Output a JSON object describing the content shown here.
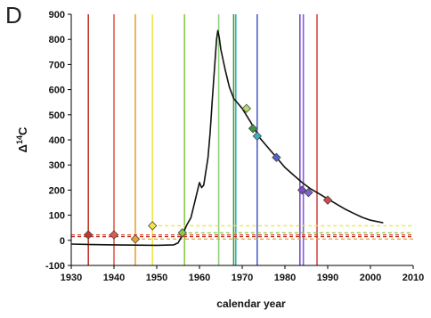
{
  "panel_label": "D",
  "chart_data": {
    "type": "line",
    "title": "",
    "xlabel": "calendar year",
    "ylabel_base": "Δ",
    "ylabel_sup": "14",
    "ylabel_tail": "C",
    "xlim": [
      1930,
      2010
    ],
    "ylim": [
      -100,
      900
    ],
    "xticks": [
      1930,
      1940,
      1950,
      1960,
      1970,
      1980,
      1990,
      2000,
      2010
    ],
    "yticks": [
      -100,
      0,
      100,
      200,
      300,
      400,
      500,
      600,
      700,
      800,
      900
    ],
    "grid": false,
    "legend": "none",
    "curve": {
      "x": [
        1930,
        1935,
        1940,
        1945,
        1950,
        1954,
        1955,
        1956,
        1957,
        1958,
        1959,
        1960,
        1960.5,
        1961,
        1962,
        1962.5,
        1963,
        1963.5,
        1964,
        1964.3,
        1964.6,
        1965,
        1966,
        1967,
        1968,
        1969,
        1970,
        1972,
        1974,
        1976,
        1978,
        1980,
        1982,
        1984,
        1986,
        1988,
        1990,
        1992,
        1994,
        1996,
        1998,
        2000,
        2003
      ],
      "y": [
        -15,
        -17,
        -18,
        -19,
        -20,
        -18,
        -10,
        20,
        60,
        90,
        160,
        230,
        210,
        220,
        330,
        430,
        560,
        680,
        800,
        835,
        810,
        760,
        680,
        610,
        565,
        545,
        525,
        470,
        410,
        370,
        330,
        290,
        260,
        230,
        205,
        185,
        165,
        145,
        125,
        108,
        92,
        80,
        70
      ]
    },
    "samples": [
      {
        "x": 1934,
        "y": 22,
        "color": "#c0392b"
      },
      {
        "x": 1940,
        "y": 22,
        "color": "#e05a4a"
      },
      {
        "x": 1945,
        "y": 5,
        "color": "#f0a030"
      },
      {
        "x": 1949,
        "y": 58,
        "color": "#f2e44a"
      },
      {
        "x": 1956,
        "y": 30,
        "color": "#8cc84b"
      },
      {
        "x": 1971,
        "y": 525,
        "color": "#b9d96a"
      },
      {
        "x": 1972.5,
        "y": 445,
        "color": "#3c9a3c"
      },
      {
        "x": 1973.5,
        "y": 415,
        "color": "#3ab0c0"
      },
      {
        "x": 1978,
        "y": 330,
        "color": "#5060c8"
      },
      {
        "x": 1984,
        "y": 200,
        "color": "#7a4cc8"
      },
      {
        "x": 1985.5,
        "y": 190,
        "color": "#8060d0"
      },
      {
        "x": 1990,
        "y": 160,
        "color": "#d04a4a"
      }
    ],
    "vertical_lines": [
      {
        "x": 1934,
        "color": "#c0392b"
      },
      {
        "x": 1940,
        "color": "#e05a4a"
      },
      {
        "x": 1945,
        "color": "#f0a030"
      },
      {
        "x": 1949,
        "color": "#f2e44a"
      },
      {
        "x": 1956.5,
        "color": "#8cc84b"
      },
      {
        "x": 1964.5,
        "color": "#8fd080"
      },
      {
        "x": 1968,
        "color": "#3c9a3c"
      },
      {
        "x": 1968.5,
        "color": "#3ab0c0"
      },
      {
        "x": 1973.5,
        "color": "#5060c8"
      },
      {
        "x": 1983.5,
        "color": "#7a4cc8"
      },
      {
        "x": 1984.3,
        "color": "#8060d0"
      },
      {
        "x": 1987.5,
        "color": "#d04a4a"
      }
    ],
    "horizontal_lines": [
      {
        "y": 58,
        "x_start": 1949,
        "color": "#f2e44a",
        "dash": "4,3"
      },
      {
        "y": 30,
        "x_start": 1956,
        "color": "#8cc84b",
        "dash": "4,3"
      },
      {
        "y": 22,
        "x_start": 1930,
        "color": "#e05a4a",
        "dash": "4,3"
      },
      {
        "y": 15,
        "x_start": 1930,
        "color": "#c0392b",
        "dash": "4,3"
      },
      {
        "y": 5,
        "x_start": 1945,
        "color": "#f0a030",
        "dash": "4,3"
      }
    ]
  }
}
